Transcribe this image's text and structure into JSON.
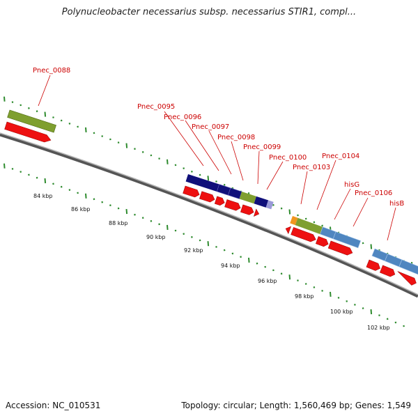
{
  "title": "Polynucleobacter necessarius subsp. necessarius STIR1, compl...",
  "accession": "Accession: NC_010531",
  "summary": "Topology: circular; Length: 1,560,469 bp; Genes: 1,549",
  "colors": {
    "backbone": "#7a7a7a",
    "tick": "#2e8b2e",
    "gene_arrow": "#ee1111",
    "label": "#cc0000",
    "olive": "#7f9f2f",
    "navy": "#10107a",
    "steelblue": "#4f86c0",
    "orange": "#f0961e",
    "lavender": "#9a9ad8"
  },
  "kbp_labels": [
    "84 kbp",
    "86 kbp",
    "88 kbp",
    "90 kbp",
    "92 kbp",
    "94 kbp",
    "96 kbp",
    "98 kbp",
    "100 kbp",
    "102 kbp"
  ],
  "gene_labels": [
    "Pnec_0088",
    "Pnec_0095",
    "Pnec_0096",
    "Pnec_0097",
    "Pnec_0098",
    "Pnec_0099",
    "Pnec_0100",
    "Pnec_0103",
    "Pnec_0104",
    "hisG",
    "Pnec_0106",
    "hisB"
  ]
}
